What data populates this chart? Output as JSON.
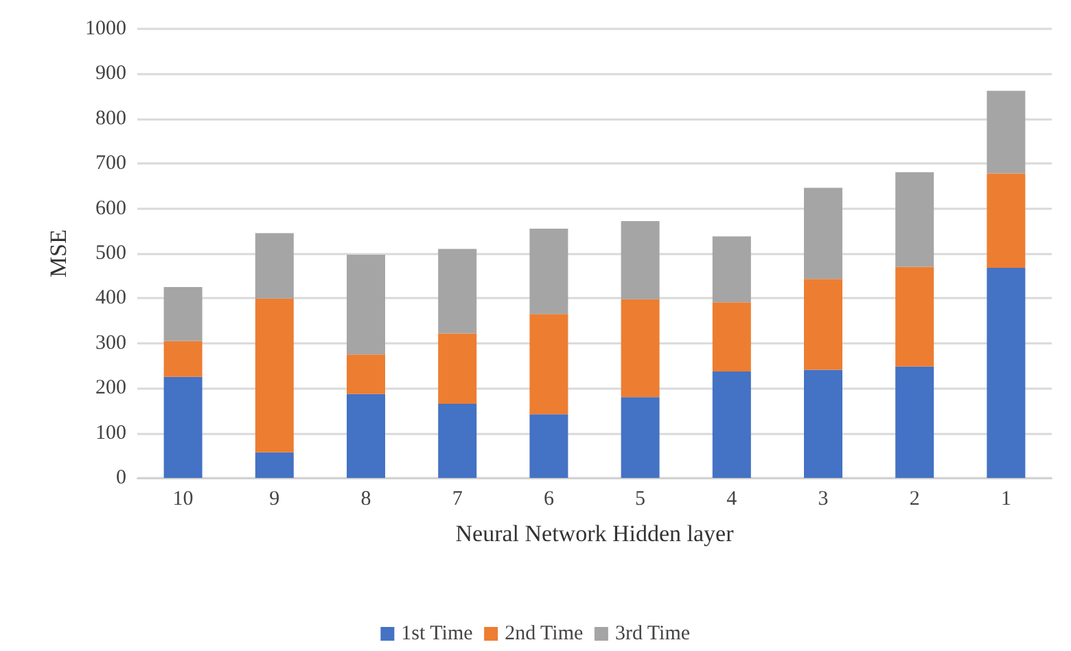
{
  "chart_data": {
    "type": "bar",
    "stacked": true,
    "xlabel": "Neural Network Hidden layer",
    "ylabel": "MSE",
    "categories": [
      "10",
      "9",
      "8",
      "7",
      "6",
      "5",
      "4",
      "3",
      "2",
      "1"
    ],
    "series": [
      {
        "name": "1st Time",
        "color": "#4472c4",
        "values": [
          225,
          57,
          187,
          165,
          142,
          180,
          237,
          241,
          248,
          468
        ]
      },
      {
        "name": "2nd Time",
        "color": "#ed7d31",
        "values": [
          80,
          343,
          88,
          157,
          223,
          218,
          154,
          202,
          222,
          210
        ]
      },
      {
        "name": "3rd Time",
        "color": "#a5a5a5",
        "values": [
          120,
          145,
          222,
          188,
          190,
          174,
          147,
          203,
          211,
          184
        ]
      }
    ],
    "ylim": [
      0,
      1000
    ],
    "yticks": [
      0,
      100,
      200,
      300,
      400,
      500,
      600,
      700,
      800,
      900,
      1000
    ],
    "grid": "y",
    "legend": "bottom"
  }
}
